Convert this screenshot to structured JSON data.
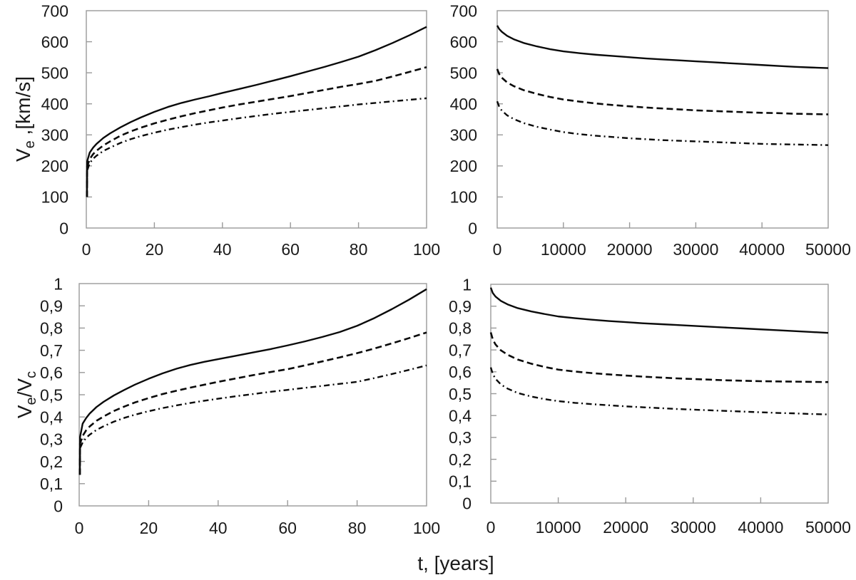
{
  "figure": {
    "xlabel": "t, [years]",
    "background": "#ffffff",
    "axis_color": "#9a9a9a",
    "curve_color": "#0a0a0a",
    "text_color": "#1a1a1a"
  },
  "chart_data": [
    {
      "id": "top-left",
      "type": "line",
      "ylabel_segments": [
        {
          "text": "V"
        },
        {
          "text": "e",
          "sub": true
        },
        {
          "text": " ,[km/s]"
        }
      ],
      "xlim": [
        0,
        100
      ],
      "ylim": [
        0,
        700
      ],
      "xticks": [
        0,
        20,
        40,
        60,
        80,
        100
      ],
      "xtick_labels": [
        "0",
        "20",
        "40",
        "60",
        "80",
        "100"
      ],
      "yticks": [
        0,
        100,
        200,
        300,
        400,
        500,
        600,
        700
      ],
      "ytick_labels": [
        "0",
        "100",
        "200",
        "300",
        "400",
        "500",
        "600",
        "700"
      ],
      "grid": false,
      "legend": "none",
      "series": [
        {
          "name": "solid",
          "style": "solid",
          "x": [
            0.2,
            0.25,
            1,
            2,
            3,
            5,
            7,
            10,
            13,
            16,
            20,
            24,
            28,
            32,
            36,
            40,
            45,
            50,
            55,
            60,
            65,
            70,
            75,
            80,
            85,
            90,
            95,
            100
          ],
          "y": [
            100,
            215,
            243,
            259,
            271,
            290,
            305,
            324,
            341,
            356,
            374,
            390,
            403,
            414,
            424,
            435,
            448,
            461,
            475,
            489,
            504,
            519,
            535,
            552,
            573,
            596,
            621,
            648
          ]
        },
        {
          "name": "dashed",
          "style": "dashed",
          "x": [
            0.2,
            0.25,
            1,
            2,
            3,
            5,
            7,
            10,
            13,
            16,
            20,
            24,
            28,
            32,
            36,
            40,
            45,
            50,
            55,
            60,
            65,
            70,
            75,
            80,
            85,
            90,
            95,
            100
          ],
          "y": [
            100,
            198,
            222,
            238,
            249,
            266,
            279,
            297,
            311,
            323,
            337,
            349,
            360,
            370,
            379,
            388,
            398,
            407,
            416,
            425,
            435,
            445,
            455,
            464,
            474,
            488,
            503,
            518
          ]
        },
        {
          "name": "dash-dot",
          "style": "dash-dot",
          "x": [
            0.2,
            0.25,
            1,
            2,
            3,
            5,
            7,
            10,
            13,
            16,
            20,
            24,
            28,
            32,
            36,
            40,
            45,
            50,
            55,
            60,
            65,
            70,
            75,
            80,
            85,
            90,
            95,
            100
          ],
          "y": [
            100,
            185,
            209,
            223,
            233,
            248,
            259,
            274,
            286,
            296,
            307,
            317,
            325,
            333,
            340,
            346,
            354,
            361,
            368,
            374,
            380,
            386,
            392,
            398,
            403,
            408,
            413,
            418
          ]
        }
      ]
    },
    {
      "id": "top-right",
      "type": "line",
      "ylabel_segments": null,
      "xlim": [
        0,
        50000
      ],
      "ylim": [
        0,
        700
      ],
      "xticks": [
        0,
        10000,
        20000,
        30000,
        40000,
        50000
      ],
      "xtick_labels": [
        "0",
        "10000",
        "20000",
        "30000",
        "40000",
        "50000"
      ],
      "yticks": [
        0,
        100,
        200,
        300,
        400,
        500,
        600,
        700
      ],
      "ytick_labels": [
        "0",
        "100",
        "200",
        "300",
        "400",
        "500",
        "600",
        "700"
      ],
      "grid": false,
      "legend": "none",
      "series": [
        {
          "name": "solid",
          "style": "solid",
          "x": [
            0,
            300,
            700,
            1500,
            2500,
            4000,
            6000,
            8000,
            10000,
            12500,
            15000,
            17500,
            20000,
            22500,
            25000,
            27500,
            30000,
            32500,
            35000,
            37500,
            40000,
            42500,
            45000,
            47500,
            50000
          ],
          "y": [
            652,
            641,
            632,
            619,
            608,
            596,
            585,
            576,
            569,
            563,
            558,
            554,
            550,
            546,
            543,
            540,
            537,
            534,
            531,
            528,
            525,
            522,
            519,
            517,
            515
          ]
        },
        {
          "name": "dashed",
          "style": "dashed",
          "x": [
            0,
            300,
            700,
            1500,
            2500,
            4000,
            6000,
            8000,
            10000,
            12500,
            15000,
            17500,
            20000,
            22500,
            25000,
            27500,
            30000,
            32500,
            35000,
            37500,
            40000,
            42500,
            45000,
            47500,
            50000
          ],
          "y": [
            512,
            496,
            484,
            469,
            457,
            444,
            432,
            422,
            414,
            407,
            401,
            396,
            392,
            388,
            385,
            382,
            379,
            377,
            375,
            373,
            371,
            370,
            368,
            367,
            366
          ]
        },
        {
          "name": "dash-dot",
          "style": "dash-dot",
          "x": [
            0,
            300,
            700,
            1500,
            2500,
            4000,
            6000,
            8000,
            10000,
            12500,
            15000,
            17500,
            20000,
            22500,
            25000,
            27500,
            30000,
            32500,
            35000,
            37500,
            40000,
            42500,
            45000,
            47500,
            50000
          ],
          "y": [
            408,
            391,
            378,
            363,
            351,
            338,
            326,
            317,
            309,
            302,
            297,
            293,
            289,
            286,
            283,
            281,
            279,
            277,
            275,
            273,
            271,
            270,
            269,
            268,
            267
          ]
        }
      ]
    },
    {
      "id": "bottom-left",
      "type": "line",
      "ylabel_segments": [
        {
          "text": "V"
        },
        {
          "text": "e",
          "sub": true
        },
        {
          "text": "/V"
        },
        {
          "text": "c",
          "sub": true
        }
      ],
      "xlim": [
        0,
        100
      ],
      "ylim": [
        0,
        1
      ],
      "xticks": [
        0,
        20,
        40,
        60,
        80,
        100
      ],
      "xtick_labels": [
        "0",
        "20",
        "40",
        "60",
        "80",
        "100"
      ],
      "yticks": [
        0,
        0.1,
        0.2,
        0.3,
        0.4,
        0.5,
        0.6,
        0.7,
        0.8,
        0.9,
        1
      ],
      "ytick_labels": [
        "0",
        "0,1",
        "0,2",
        "0,3",
        "0,4",
        "0,5",
        "0,6",
        "0,7",
        "0,8",
        "0,9",
        "1"
      ],
      "grid": false,
      "legend": "none",
      "series": [
        {
          "name": "solid",
          "style": "solid",
          "x": [
            0.2,
            0.25,
            1,
            2,
            3,
            5,
            7,
            10,
            13,
            16,
            20,
            24,
            28,
            32,
            36,
            40,
            45,
            50,
            55,
            60,
            65,
            70,
            75,
            80,
            85,
            90,
            95,
            100
          ],
          "y": [
            0.14,
            0.31,
            0.37,
            0.395,
            0.415,
            0.445,
            0.468,
            0.497,
            0.522,
            0.545,
            0.572,
            0.596,
            0.617,
            0.634,
            0.648,
            0.66,
            0.675,
            0.69,
            0.705,
            0.722,
            0.74,
            0.76,
            0.782,
            0.81,
            0.845,
            0.885,
            0.928,
            0.975
          ]
        },
        {
          "name": "dashed",
          "style": "dashed",
          "x": [
            0.2,
            0.25,
            1,
            2,
            3,
            5,
            7,
            10,
            13,
            16,
            20,
            24,
            28,
            32,
            36,
            40,
            45,
            50,
            55,
            60,
            65,
            70,
            75,
            80,
            85,
            90,
            95,
            100
          ],
          "y": [
            0.14,
            0.28,
            0.315,
            0.34,
            0.357,
            0.383,
            0.402,
            0.427,
            0.447,
            0.465,
            0.485,
            0.503,
            0.518,
            0.532,
            0.545,
            0.558,
            0.573,
            0.588,
            0.602,
            0.615,
            0.632,
            0.65,
            0.668,
            0.687,
            0.708,
            0.731,
            0.755,
            0.78
          ]
        },
        {
          "name": "dash-dot",
          "style": "dash-dot",
          "x": [
            0.2,
            0.25,
            1,
            2,
            3,
            5,
            7,
            10,
            13,
            16,
            20,
            24,
            28,
            32,
            36,
            40,
            45,
            50,
            55,
            60,
            65,
            70,
            75,
            80,
            85,
            90,
            95,
            100
          ],
          "y": [
            0.14,
            0.26,
            0.285,
            0.306,
            0.32,
            0.342,
            0.358,
            0.379,
            0.396,
            0.41,
            0.426,
            0.44,
            0.452,
            0.463,
            0.473,
            0.482,
            0.493,
            0.503,
            0.513,
            0.522,
            0.531,
            0.54,
            0.549,
            0.558,
            0.575,
            0.593,
            0.612,
            0.632
          ]
        }
      ]
    },
    {
      "id": "bottom-right",
      "type": "line",
      "ylabel_segments": null,
      "xlim": [
        0,
        50000
      ],
      "ylim": [
        0,
        1
      ],
      "xticks": [
        0,
        10000,
        20000,
        30000,
        40000,
        50000
      ],
      "xtick_labels": [
        "0",
        "10000",
        "20000",
        "30000",
        "40000",
        "50000"
      ],
      "yticks": [
        0,
        0.1,
        0.2,
        0.3,
        0.4,
        0.5,
        0.6,
        0.7,
        0.8,
        0.9,
        1
      ],
      "ytick_labels": [
        "0",
        "0,1",
        "0,2",
        "0,3",
        "0,4",
        "0,5",
        "0,6",
        "0,7",
        "0,8",
        "0,9",
        "1"
      ],
      "grid": false,
      "legend": "none",
      "series": [
        {
          "name": "solid",
          "style": "solid",
          "x": [
            0,
            300,
            700,
            1500,
            2500,
            4000,
            6000,
            8000,
            10000,
            12500,
            15000,
            17500,
            20000,
            22500,
            25000,
            27500,
            30000,
            32500,
            35000,
            37500,
            40000,
            42500,
            45000,
            47500,
            50000
          ],
          "y": [
            0.985,
            0.96,
            0.944,
            0.924,
            0.908,
            0.891,
            0.876,
            0.864,
            0.853,
            0.845,
            0.838,
            0.832,
            0.827,
            0.822,
            0.818,
            0.814,
            0.81,
            0.806,
            0.802,
            0.798,
            0.794,
            0.79,
            0.786,
            0.782,
            0.778
          ]
        },
        {
          "name": "dashed",
          "style": "dashed",
          "x": [
            0,
            300,
            700,
            1500,
            2500,
            4000,
            6000,
            8000,
            10000,
            12500,
            15000,
            17500,
            20000,
            22500,
            25000,
            27500,
            30000,
            32500,
            35000,
            37500,
            40000,
            42500,
            45000,
            47500,
            50000
          ],
          "y": [
            0.78,
            0.748,
            0.725,
            0.698,
            0.678,
            0.656,
            0.637,
            0.622,
            0.61,
            0.601,
            0.594,
            0.588,
            0.583,
            0.578,
            0.574,
            0.57,
            0.567,
            0.564,
            0.561,
            0.559,
            0.557,
            0.556,
            0.555,
            0.554,
            0.553
          ]
        },
        {
          "name": "dash-dot",
          "style": "dash-dot",
          "x": [
            0,
            300,
            700,
            1500,
            2500,
            4000,
            6000,
            8000,
            10000,
            12500,
            15000,
            17500,
            20000,
            22500,
            25000,
            27500,
            30000,
            32500,
            35000,
            37500,
            40000,
            42500,
            45000,
            47500,
            50000
          ],
          "y": [
            0.62,
            0.59,
            0.568,
            0.542,
            0.523,
            0.503,
            0.487,
            0.475,
            0.466,
            0.458,
            0.452,
            0.447,
            0.442,
            0.438,
            0.434,
            0.43,
            0.427,
            0.424,
            0.421,
            0.418,
            0.415,
            0.412,
            0.41,
            0.407,
            0.405
          ]
        }
      ]
    }
  ]
}
